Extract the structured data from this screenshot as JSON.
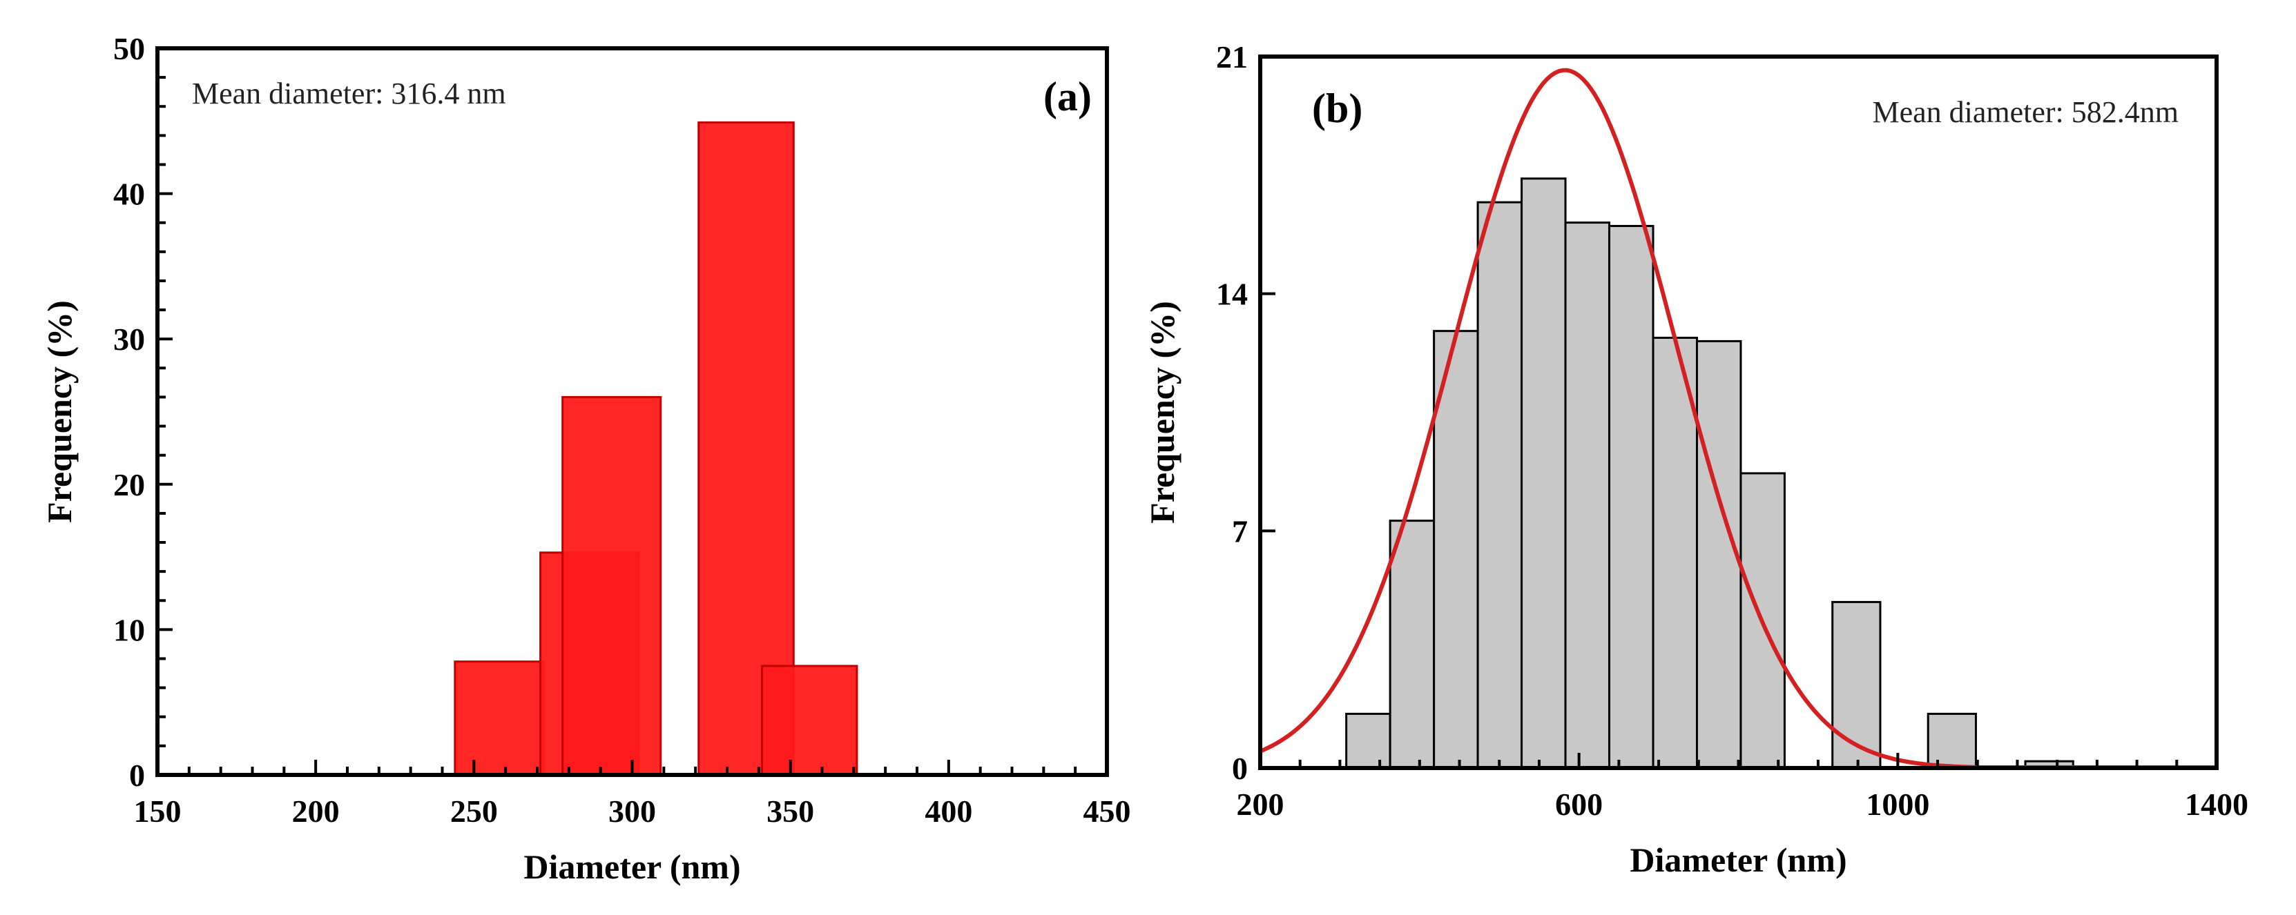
{
  "chart_data": [
    {
      "panel": "(a)",
      "type": "bar",
      "title": "",
      "annotation": "Mean diameter: 316.4 nm",
      "xlabel": "Diameter (nm)",
      "ylabel": "Frequency (%)",
      "xlim": [
        150,
        450
      ],
      "ylim": [
        0,
        50
      ],
      "xticks": [
        150,
        200,
        250,
        300,
        350,
        400,
        450
      ],
      "yticks": [
        0,
        10,
        20,
        30,
        40,
        50
      ],
      "grid": false,
      "colors": {
        "bar_fill": "#ff1a1a",
        "bar_edge": "#c00000"
      },
      "bars": [
        {
          "x0": 244,
          "x1": 272,
          "value": 7.8
        },
        {
          "x0": 271,
          "x1": 302,
          "value": 15.3
        },
        {
          "x0": 278,
          "x1": 309,
          "value": 26.0
        },
        {
          "x0": 321,
          "x1": 351,
          "value": 44.9
        },
        {
          "x0": 341,
          "x1": 371,
          "value": 7.5
        }
      ]
    },
    {
      "panel": "(b)",
      "type": "bar",
      "title": "",
      "annotation": "Mean diameter: 582.4nm",
      "xlabel": "Diameter (nm)",
      "ylabel": "Frequency (%)",
      "xlim": [
        200,
        1400
      ],
      "ylim": [
        0,
        21
      ],
      "xticks": [
        200,
        600,
        1000,
        1400
      ],
      "yticks": [
        0,
        7,
        14,
        21
      ],
      "grid": false,
      "colors": {
        "bar_fill": "#c8c8c8",
        "bar_edge": "#000000",
        "fit_line": "#d42020"
      },
      "bars": [
        {
          "x0": 308,
          "x1": 363,
          "value": 1.6
        },
        {
          "x0": 363,
          "x1": 418,
          "value": 7.3
        },
        {
          "x0": 418,
          "x1": 473,
          "value": 12.9
        },
        {
          "x0": 473,
          "x1": 528,
          "value": 16.7
        },
        {
          "x0": 528,
          "x1": 583,
          "value": 17.4
        },
        {
          "x0": 583,
          "x1": 638,
          "value": 16.1
        },
        {
          "x0": 638,
          "x1": 693,
          "value": 16.0
        },
        {
          "x0": 693,
          "x1": 748,
          "value": 12.7
        },
        {
          "x0": 748,
          "x1": 803,
          "value": 12.6
        },
        {
          "x0": 803,
          "x1": 858,
          "value": 8.7
        },
        {
          "x0": 858,
          "x1": 918,
          "value": 0
        },
        {
          "x0": 918,
          "x1": 978,
          "value": 4.9
        },
        {
          "x0": 1038,
          "x1": 1098,
          "value": 1.6
        },
        {
          "x0": 1160,
          "x1": 1220,
          "value": 0.2
        }
      ],
      "fit": {
        "type": "gaussian",
        "mean": 582.4,
        "sd": 140,
        "peak": 20.6
      }
    }
  ]
}
